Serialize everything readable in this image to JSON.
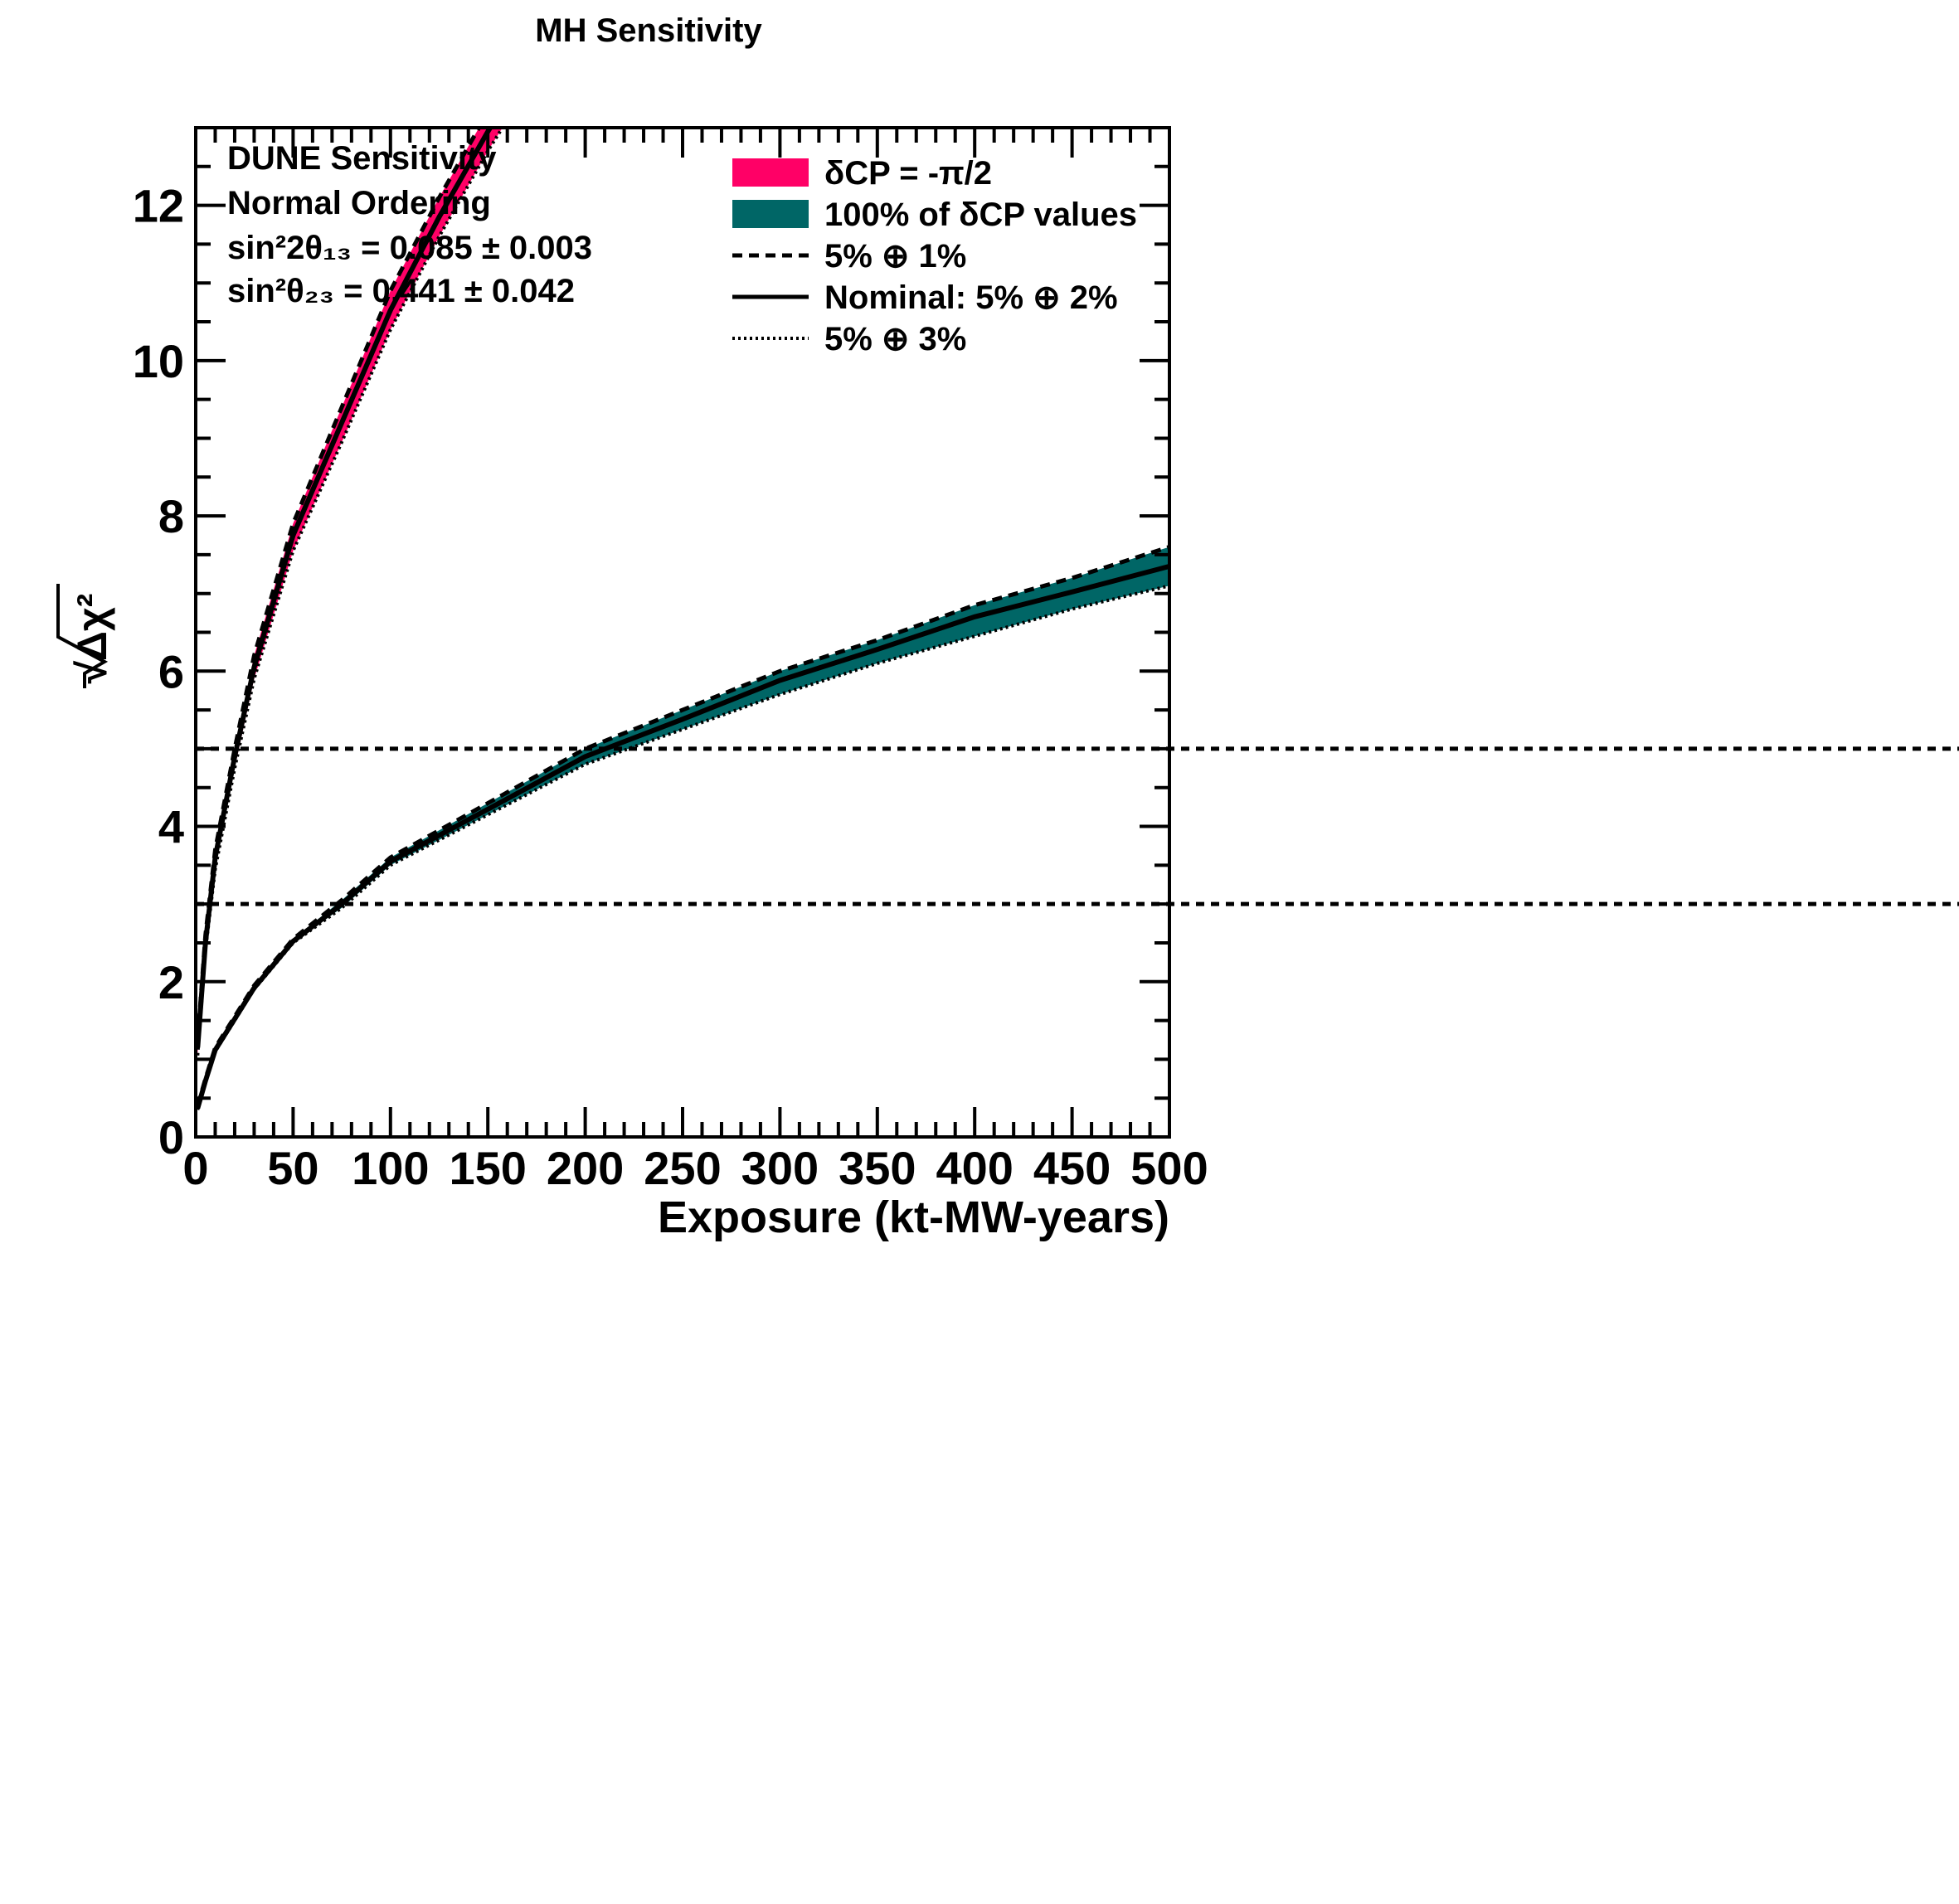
{
  "chart_data": {
    "type": "line",
    "title": "MH Sensitivity",
    "xlabel": "Exposure (kt-MW-years)",
    "ylabel": "√Δχ²",
    "xlim": [
      0,
      500
    ],
    "ylim": [
      0,
      13
    ],
    "x_ticks": [
      "0",
      "50",
      "100",
      "150",
      "200",
      "250",
      "300",
      "350",
      "400",
      "450",
      "500"
    ],
    "y_ticks": [
      "0",
      "2",
      "4",
      "6",
      "8",
      "10",
      "12"
    ],
    "x_tick_values": [
      0,
      50,
      100,
      150,
      200,
      250,
      300,
      350,
      400,
      450,
      500
    ],
    "y_tick_values": [
      0,
      2,
      4,
      6,
      8,
      10,
      12
    ],
    "reference_lines": [
      5,
      3
    ],
    "annotations": [
      "DUNE Sensitivity",
      "Normal Ordering",
      "sin²2θ₁₃ = 0.085 ± 0.003",
      "sin²θ₂₃ = 0.441 ± 0.042"
    ],
    "legend": [
      {
        "label": "δCP = -π/2",
        "kind": "fill",
        "color": "#ff0066"
      },
      {
        "label": "100% of δCP values",
        "kind": "fill",
        "color": "#006666"
      },
      {
        "label": "5% ⊕ 1%",
        "kind": "dashed"
      },
      {
        "label": "Nominal: 5% ⊕ 2%",
        "kind": "solid"
      },
      {
        "label": "5% ⊕ 3%",
        "kind": "dotted"
      }
    ],
    "legend_placement": "top-right",
    "bands": [
      {
        "label": "δCP = -π/2",
        "color": "#ff0066",
        "x": [
          1,
          5,
          10,
          20,
          30,
          50,
          75,
          100,
          125,
          150,
          160
        ],
        "upper": [
          1.25,
          2.6,
          3.7,
          5.0,
          6.2,
          7.9,
          9.4,
          10.9,
          12.1,
          13.2,
          13.6
        ],
        "lower": [
          1.05,
          2.4,
          3.45,
          4.75,
          5.9,
          7.55,
          8.95,
          10.4,
          11.6,
          12.7,
          13.1
        ],
        "nominal": [
          1.15,
          2.5,
          3.6,
          4.9,
          6.05,
          7.75,
          9.2,
          10.65,
          11.85,
          12.95,
          13.35
        ]
      },
      {
        "label": "100% of δCP values",
        "color": "#006666",
        "x": [
          1,
          5,
          10,
          20,
          30,
          40,
          50,
          75,
          100,
          150,
          200,
          250,
          300,
          350,
          400,
          450,
          500
        ],
        "upper": [
          0.4,
          0.75,
          1.15,
          1.55,
          1.95,
          2.25,
          2.55,
          3.05,
          3.6,
          4.3,
          5.0,
          5.5,
          6.0,
          6.4,
          6.85,
          7.2,
          7.6
        ],
        "lower": [
          0.35,
          0.7,
          1.1,
          1.5,
          1.9,
          2.2,
          2.5,
          2.95,
          3.5,
          4.15,
          4.8,
          5.25,
          5.7,
          6.1,
          6.45,
          6.8,
          7.1
        ],
        "nominal": [
          0.37,
          0.72,
          1.12,
          1.52,
          1.92,
          2.22,
          2.52,
          3.0,
          3.55,
          4.22,
          4.9,
          5.38,
          5.88,
          6.28,
          6.7,
          7.02,
          7.35
        ]
      }
    ]
  }
}
